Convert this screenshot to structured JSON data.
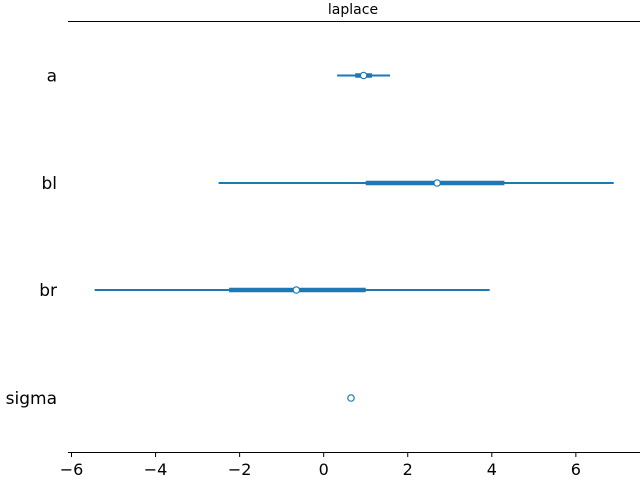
{
  "chart_data": {
    "type": "forest",
    "title": "laplace",
    "xlabel": "",
    "ylabel": "",
    "xlim": [
      -6.3,
      7.6
    ],
    "xticks": [
      -6,
      -4,
      -2,
      0,
      2,
      4,
      6
    ],
    "xtick_labels": [
      "−6",
      "−4",
      "−2",
      "0",
      "2",
      "4",
      "6"
    ],
    "grid": false,
    "color": "#1f77b4",
    "categories": [
      "a",
      "bl",
      "br",
      "sigma"
    ],
    "intervals": [
      {
        "name": "a",
        "median": 0.95,
        "iqr": [
          0.75,
          1.15
        ],
        "hdi": [
          0.32,
          1.58
        ]
      },
      {
        "name": "bl",
        "median": 2.7,
        "iqr": [
          1.0,
          4.3
        ],
        "hdi": [
          -2.5,
          6.9
        ]
      },
      {
        "name": "br",
        "median": -0.65,
        "iqr": [
          -2.25,
          1.0
        ],
        "hdi": [
          -5.45,
          3.95
        ]
      },
      {
        "name": "sigma",
        "median": 0.65,
        "iqr": [
          0.62,
          0.68
        ],
        "hdi": [
          0.6,
          0.7
        ]
      }
    ]
  }
}
